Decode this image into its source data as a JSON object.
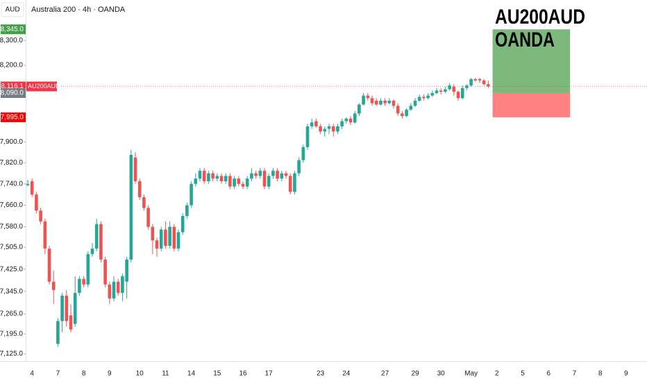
{
  "chart_data": {
    "type": "candlestick",
    "header": {
      "currency": "AUD",
      "title": "Australia 200 · 4h · OANDA"
    },
    "symbol": "AU200AUD",
    "watermark": {
      "line1": "AU200AUD",
      "line2": "OANDA"
    },
    "log_scale": true,
    "up_color": "#26a69a",
    "down_color": "#ef5350",
    "ylim": [
      7100,
      8465
    ],
    "yticks": [
      {
        "value": 8300,
        "label": "8,300.0"
      },
      {
        "value": 8200,
        "label": "8,200.0"
      },
      {
        "value": 7900,
        "label": "7,900.0"
      },
      {
        "value": 7820,
        "label": "7,820.0"
      },
      {
        "value": 7740,
        "label": "7,740.0"
      },
      {
        "value": 7660,
        "label": "7,660.0"
      },
      {
        "value": 7580,
        "label": "7,580.0"
      },
      {
        "value": 7505,
        "label": "7,505.0"
      },
      {
        "value": 7425,
        "label": "7,425.0"
      },
      {
        "value": 7345,
        "label": "7,345.0"
      },
      {
        "value": 7265,
        "label": "7,265.0"
      },
      {
        "value": 7195,
        "label": "7,195.0"
      },
      {
        "value": 7125,
        "label": "7,125.0"
      }
    ],
    "price_labels": [
      {
        "value": 8345,
        "label": "8,345.0",
        "color": "#43a047"
      },
      {
        "value": 8116.1,
        "label": "8,116.1",
        "color": "#f23645",
        "symbol_tag": true,
        "line": true
      },
      {
        "value": 8090,
        "label": "8,090.0",
        "color": "#787b86"
      },
      {
        "value": 7995,
        "label": "7,995.0",
        "color": "#f50000"
      }
    ],
    "position": {
      "entry": 8090,
      "target": 8345,
      "stop": 7995,
      "start_index": 108,
      "end_index": 126,
      "profit_color": "#7cb87c",
      "loss_color": "#ff8080"
    },
    "categories": [
      null,
      "4",
      null,
      null,
      null,
      null,
      null,
      "7",
      null,
      null,
      null,
      null,
      null,
      "8",
      null,
      null,
      null,
      null,
      null,
      "9",
      null,
      null,
      null,
      null,
      null,
      null,
      "10",
      null,
      null,
      null,
      null,
      null,
      "11",
      null,
      null,
      null,
      null,
      null,
      "14",
      null,
      null,
      null,
      null,
      null,
      "15",
      null,
      null,
      null,
      null,
      null,
      "16",
      null,
      null,
      null,
      null,
      null,
      "17",
      null,
      null,
      null,
      null,
      null,
      null,
      null,
      null,
      null,
      null,
      null,
      "23",
      null,
      null,
      null,
      null,
      null,
      "24",
      null,
      null,
      null,
      null,
      null,
      null,
      null,
      null,
      "27",
      null,
      null,
      null,
      null,
      null,
      null,
      "29",
      null,
      null,
      null,
      null,
      null,
      "30",
      null,
      null,
      null,
      null,
      null,
      null,
      "May",
      null,
      null,
      null,
      null,
      null,
      "2",
      null,
      null,
      null,
      null,
      null,
      "5",
      null,
      null,
      null,
      null,
      null,
      "6",
      null,
      null,
      null,
      null,
      null,
      "7",
      null,
      null,
      null,
      null,
      null,
      "8",
      null,
      null,
      null,
      null,
      null,
      "9"
    ],
    "candles": [
      [
        7735,
        7755,
        7730,
        7740
      ],
      [
        7750,
        7760,
        7690,
        7700
      ],
      [
        7700,
        7710,
        7630,
        7640
      ],
      [
        7640,
        7650,
        7590,
        7600
      ],
      [
        7600,
        7610,
        7480,
        7500
      ],
      [
        7500,
        7510,
        7370,
        7380
      ],
      [
        7380,
        7420,
        7300,
        7350
      ],
      [
        7160,
        7250,
        7150,
        7240
      ],
      [
        7240,
        7340,
        7200,
        7330
      ],
      [
        7330,
        7350,
        7220,
        7240
      ],
      [
        7260,
        7300,
        7200,
        7210
      ],
      [
        7230,
        7400,
        7220,
        7340
      ],
      [
        7340,
        7400,
        7330,
        7390
      ],
      [
        7390,
        7400,
        7360,
        7370
      ],
      [
        7370,
        7490,
        7360,
        7480
      ],
      [
        7480,
        7520,
        7470,
        7500
      ],
      [
        7500,
        7610,
        7490,
        7590
      ],
      [
        7590,
        7600,
        7450,
        7460
      ],
      [
        7460,
        7470,
        7360,
        7370
      ],
      [
        7370,
        7380,
        7300,
        7320
      ],
      [
        7320,
        7400,
        7310,
        7380
      ],
      [
        7380,
        7390,
        7330,
        7340
      ],
      [
        7340,
        7410,
        7310,
        7400
      ],
      [
        7380,
        7470,
        7320,
        7460
      ],
      [
        7460,
        7870,
        7450,
        7850
      ],
      [
        7840,
        7860,
        7740,
        7750
      ],
      [
        7750,
        7760,
        7680,
        7690
      ],
      [
        7690,
        7700,
        7640,
        7650
      ],
      [
        7650,
        7660,
        7570,
        7580
      ],
      [
        7580,
        7590,
        7480,
        7530
      ],
      [
        7530,
        7540,
        7470,
        7500
      ],
      [
        7500,
        7580,
        7490,
        7570
      ],
      [
        7570,
        7600,
        7500,
        7510
      ],
      [
        7510,
        7600,
        7500,
        7580
      ],
      [
        7580,
        7590,
        7490,
        7500
      ],
      [
        7500,
        7570,
        7490,
        7560
      ],
      [
        7560,
        7630,
        7550,
        7620
      ],
      [
        7620,
        7670,
        7610,
        7660
      ],
      [
        7660,
        7750,
        7650,
        7740
      ],
      [
        7740,
        7780,
        7730,
        7760
      ],
      [
        7760,
        7800,
        7750,
        7790
      ],
      [
        7790,
        7800,
        7740,
        7750
      ],
      [
        7750,
        7790,
        7740,
        7780
      ],
      [
        7780,
        7790,
        7750,
        7760
      ],
      [
        7760,
        7780,
        7750,
        7770
      ],
      [
        7770,
        7780,
        7740,
        7750
      ],
      [
        7750,
        7780,
        7740,
        7770
      ],
      [
        7770,
        7780,
        7720,
        7730
      ],
      [
        7730,
        7770,
        7720,
        7760
      ],
      [
        7760,
        7770,
        7730,
        7740
      ],
      [
        7740,
        7750,
        7720,
        7730
      ],
      [
        7730,
        7770,
        7720,
        7760
      ],
      [
        7760,
        7800,
        7750,
        7780
      ],
      [
        7780,
        7790,
        7760,
        7770
      ],
      [
        7770,
        7800,
        7760,
        7790
      ],
      [
        7790,
        7800,
        7720,
        7730
      ],
      [
        7730,
        7780,
        7720,
        7770
      ],
      [
        7770,
        7800,
        7760,
        7790
      ],
      [
        7790,
        7800,
        7750,
        7760
      ],
      [
        7760,
        7790,
        7750,
        7780
      ],
      [
        7780,
        7790,
        7760,
        7770
      ],
      [
        7770,
        7780,
        7700,
        7710
      ],
      [
        7710,
        7790,
        7700,
        7780
      ],
      [
        7780,
        7840,
        7770,
        7830
      ],
      [
        7830,
        7890,
        7820,
        7880
      ],
      [
        7880,
        7970,
        7870,
        7960
      ],
      [
        7960,
        7990,
        7950,
        7975
      ],
      [
        7980,
        7990,
        7955,
        7960
      ],
      [
        7960,
        7970,
        7930,
        7940
      ],
      [
        7940,
        7960,
        7920,
        7950
      ],
      [
        7950,
        7970,
        7930,
        7960
      ],
      [
        7960,
        7970,
        7920,
        7940
      ],
      [
        7940,
        7970,
        7930,
        7960
      ],
      [
        7960,
        7990,
        7950,
        7980
      ],
      [
        7980,
        7995,
        7970,
        7990
      ],
      [
        7990,
        8000,
        7965,
        7975
      ],
      [
        7975,
        8020,
        7970,
        8010
      ],
      [
        8010,
        8050,
        8000,
        8045
      ],
      [
        8045,
        8090,
        8040,
        8080
      ],
      [
        8080,
        8090,
        8060,
        8070
      ],
      [
        8070,
        8080,
        8040,
        8050
      ],
      [
        8060,
        8070,
        8040,
        8045
      ],
      [
        8045,
        8070,
        8040,
        8060
      ],
      [
        8060,
        8070,
        8040,
        8050
      ],
      [
        8050,
        8070,
        8045,
        8060
      ],
      [
        8060,
        8065,
        8030,
        8040
      ],
      [
        8040,
        8050,
        8000,
        8010
      ],
      [
        8010,
        8020,
        7990,
        8000
      ],
      [
        8000,
        8030,
        7995,
        8025
      ],
      [
        8025,
        8050,
        8020,
        8040
      ],
      [
        8040,
        8070,
        8035,
        8060
      ],
      [
        8060,
        8085,
        8055,
        8075
      ],
      [
        8075,
        8085,
        8060,
        8070
      ],
      [
        8070,
        8090,
        8065,
        8080
      ],
      [
        8080,
        8100,
        8075,
        8090
      ],
      [
        8090,
        8110,
        8085,
        8100
      ],
      [
        8100,
        8110,
        8085,
        8095
      ],
      [
        8095,
        8115,
        8090,
        8105
      ],
      [
        8105,
        8130,
        8100,
        8120
      ],
      [
        8115,
        8125,
        8080,
        8095
      ],
      [
        8095,
        8100,
        8060,
        8070
      ],
      [
        8070,
        8120,
        8065,
        8110
      ],
      [
        8110,
        8125,
        8100,
        8120
      ],
      [
        8120,
        8150,
        8115,
        8145
      ],
      [
        8145,
        8150,
        8135,
        8140
      ],
      [
        8145,
        8150,
        8130,
        8140
      ],
      [
        8140,
        8145,
        8120,
        8125
      ],
      [
        8125,
        8140,
        8110,
        8116.1
      ],
      null,
      null,
      null,
      null,
      null,
      null,
      null,
      null,
      null,
      null,
      null,
      null,
      null,
      null,
      null,
      null,
      null,
      null,
      null,
      null,
      null,
      null,
      null,
      null,
      null,
      null,
      null,
      null,
      null,
      null,
      null,
      null
    ]
  }
}
